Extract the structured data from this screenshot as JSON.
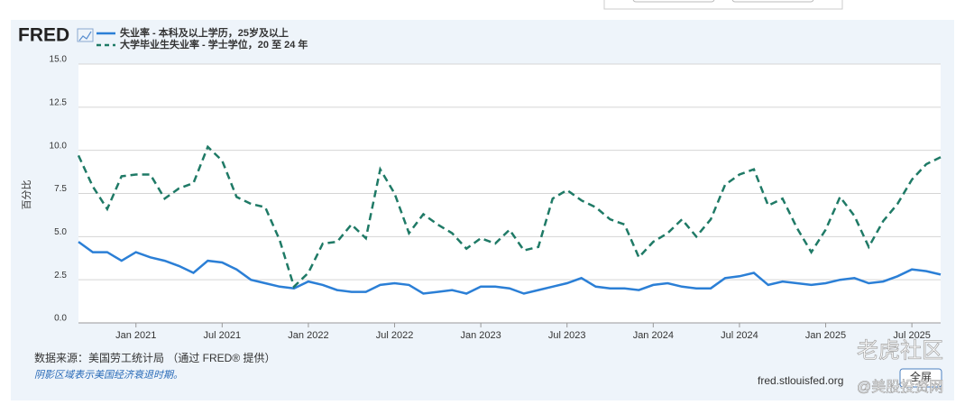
{
  "chart_data": {
    "type": "line",
    "y_label": "百分比",
    "x": [
      "2020-09",
      "2020-10",
      "2020-11",
      "2020-12",
      "2021-01",
      "2021-02",
      "2021-03",
      "2021-04",
      "2021-05",
      "2021-06",
      "2021-07",
      "2021-08",
      "2021-09",
      "2021-10",
      "2021-11",
      "2021-12",
      "2022-01",
      "2022-02",
      "2022-03",
      "2022-04",
      "2022-05",
      "2022-06",
      "2022-07",
      "2022-08",
      "2022-09",
      "2022-10",
      "2022-11",
      "2022-12",
      "2023-01",
      "2023-02",
      "2023-03",
      "2023-04",
      "2023-05",
      "2023-06",
      "2023-07",
      "2023-08",
      "2023-09",
      "2023-10",
      "2023-11",
      "2023-12",
      "2024-01",
      "2024-02",
      "2024-03",
      "2024-04",
      "2024-05",
      "2024-06",
      "2024-07",
      "2024-08",
      "2024-09",
      "2024-10",
      "2024-11",
      "2024-12",
      "2025-01",
      "2025-02",
      "2025-03",
      "2025-04",
      "2025-05",
      "2025-06",
      "2025-07",
      "2025-08",
      "2025-09"
    ],
    "series": [
      {
        "name": "失业率 - 本科及以上学历，25岁及以上",
        "color": "#2b7fd6",
        "dash": false,
        "values": [
          4.7,
          4.1,
          4.1,
          3.6,
          4.1,
          3.8,
          3.6,
          3.3,
          2.9,
          3.6,
          3.5,
          3.1,
          2.5,
          2.3,
          2.1,
          2.0,
          2.4,
          2.2,
          1.9,
          1.8,
          1.8,
          2.2,
          2.3,
          2.2,
          1.7,
          1.8,
          1.9,
          1.7,
          2.1,
          2.1,
          2.0,
          1.7,
          1.9,
          2.1,
          2.3,
          2.6,
          2.1,
          2.0,
          2.0,
          1.9,
          2.2,
          2.3,
          2.1,
          2.0,
          2.0,
          2.6,
          2.7,
          2.9,
          2.2,
          2.4,
          2.3,
          2.2,
          2.3,
          2.5,
          2.6,
          2.3,
          2.4,
          2.7,
          3.1,
          3.0,
          2.8
        ]
      },
      {
        "name": "大学毕业生失业率 - 学士学位，20 至 24 年",
        "color": "#1f7a66",
        "dash": true,
        "values": [
          9.7,
          7.9,
          6.6,
          8.5,
          8.6,
          8.6,
          7.2,
          7.8,
          8.1,
          10.2,
          9.4,
          7.3,
          6.9,
          6.7,
          4.8,
          2.1,
          2.9,
          4.6,
          4.7,
          5.7,
          4.9,
          8.9,
          7.5,
          5.2,
          6.3,
          5.7,
          5.2,
          4.3,
          4.9,
          4.6,
          5.4,
          4.2,
          4.4,
          7.2,
          7.7,
          7.1,
          6.7,
          6.0,
          5.7,
          3.8,
          4.7,
          5.2,
          6.0,
          5.0,
          6.0,
          8.0,
          8.6,
          8.9,
          6.8,
          7.2,
          5.5,
          4.1,
          5.4,
          7.3,
          6.2,
          4.4,
          5.9,
          6.9,
          8.3,
          9.2,
          9.6
        ]
      }
    ],
    "xlim": [
      "2020-09",
      "2025-09"
    ],
    "xticks": [
      {
        "value": "2021-01",
        "label": "Jan 2021"
      },
      {
        "value": "2021-07",
        "label": "Jul 2021"
      },
      {
        "value": "2022-01",
        "label": "Jan 2022"
      },
      {
        "value": "2022-07",
        "label": "Jul 2022"
      },
      {
        "value": "2023-01",
        "label": "Jan 2023"
      },
      {
        "value": "2023-07",
        "label": "Jul 2023"
      },
      {
        "value": "2024-01",
        "label": "Jan 2024"
      },
      {
        "value": "2024-07",
        "label": "Jul 2024"
      },
      {
        "value": "2025-01",
        "label": "Jan 2025"
      },
      {
        "value": "2025-07",
        "label": "Jul 2025"
      }
    ],
    "ylim": [
      0,
      15
    ],
    "yticks": [
      {
        "value": 0,
        "label": "0.0"
      },
      2.5,
      {
        "value": 5,
        "label": "5.0"
      },
      7.5,
      {
        "value": 10,
        "label": "10.0"
      },
      12.5,
      {
        "value": 15,
        "label": "15.0"
      }
    ],
    "grid": true,
    "legend": "top-left"
  },
  "logo": "FRED",
  "source": "数据来源：美国劳工统计局 （通过 FRED® 提供）",
  "note": "阴影区域表示美国经济衰退时期。",
  "url": "fred.stlouisfed.org",
  "fullscreen": "全屏",
  "watermark": "老虎社区",
  "watermark2": "@美股投资网"
}
